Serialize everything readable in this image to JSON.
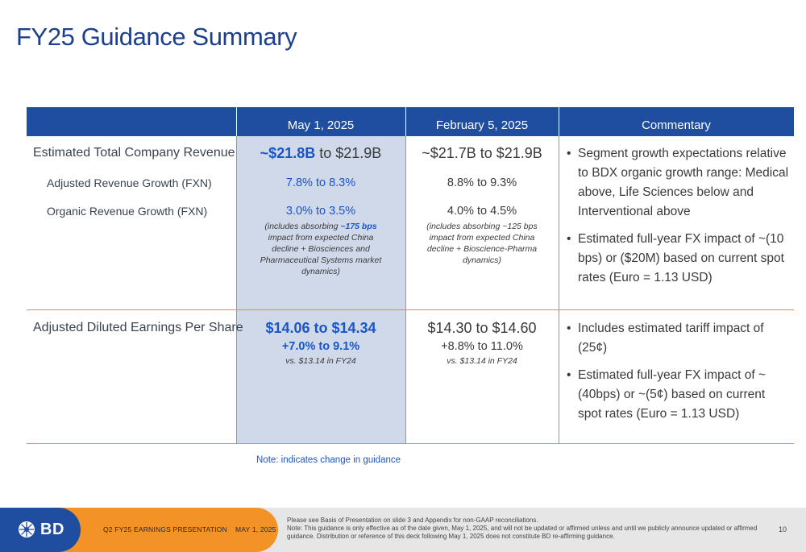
{
  "title": "FY25 Guidance Summary",
  "table": {
    "headers": [
      "",
      "May 1, 2025",
      "February 5, 2025",
      "Commentary"
    ],
    "rows": {
      "revenue": {
        "label": "Estimated Total Company Revenue",
        "adj_label": "Adjusted Revenue Growth (FXN)",
        "org_label": "Organic Revenue Growth (FXN)",
        "may": {
          "total_bold": "~$21.8B",
          "total_rest": " to $21.9B",
          "adj": "7.8% to 8.3%",
          "org": "3.0% to 3.5%",
          "note_pre": "(includes absorbing ",
          "note_bold": "~175 bps",
          "note_post": " impact from expected China decline + Biosciences and Pharmaceutical Systems market dynamics)"
        },
        "feb": {
          "total": "~$21.7B to $21.9B",
          "adj": "8.8% to 9.3%",
          "org": "4.0% to 4.5%",
          "note": "(includes absorbing ~125 bps impact from expected China decline + Bioscience-Pharma dynamics)"
        },
        "commentary": [
          "Segment growth expectations relative to BDX organic growth range: Medical above, Life Sciences below and Interventional above",
          "Estimated full-year FX impact of ~(10 bps) or ($20M) based on current spot rates (Euro = 1.13 USD)"
        ]
      },
      "eps": {
        "label": "Adjusted Diluted Earnings Per Share",
        "may": {
          "range": "$14.06 to $14.34",
          "growth": "+7.0% to 9.1%",
          "vs": "vs. $13.14 in FY24"
        },
        "feb": {
          "range": "$14.30 to $14.60",
          "growth": "+8.8% to 11.0%",
          "vs": "vs. $13.14 in FY24"
        },
        "commentary": [
          "Includes estimated tariff impact of (25¢)",
          "Estimated full-year FX impact of ~(40bps) or ~(5¢) based on current spot rates (Euro = 1.13 USD)"
        ]
      }
    }
  },
  "note": "Note: indicates change in guidance",
  "footer": {
    "logo": "BD",
    "presentation": "Q2 FY25 EARNINGS PRESENTATION    MAY 1, 2025",
    "disclaimer_1": "Please see Basis of Presentation on slide 3 and Appendix for non-GAAP reconciliations.",
    "disclaimer_2": "Note: This guidance is only effective as of the date given, May 1, 2025, and will not be updated or affirmed unless and until we publicly announce updated or affirmed guidance. Distribution or reference of this deck following May 1, 2025 does not constitute BD re-affirming guidance.",
    "page": "10"
  },
  "colors": {
    "header_blue": "#1f4da0",
    "accent_orange": "#f29227",
    "highlight_blue": "#cfd9ea",
    "change_blue": "#1a55c8"
  }
}
